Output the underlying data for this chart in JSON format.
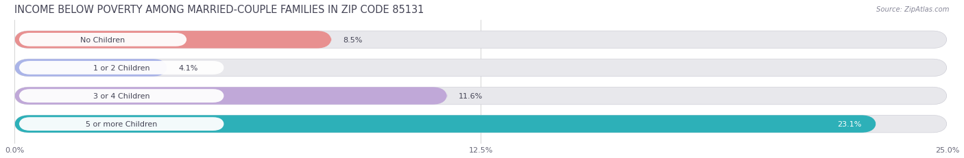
{
  "title": "INCOME BELOW POVERTY AMONG MARRIED-COUPLE FAMILIES IN ZIP CODE 85131",
  "source": "Source: ZipAtlas.com",
  "categories": [
    "No Children",
    "1 or 2 Children",
    "3 or 4 Children",
    "5 or more Children"
  ],
  "values": [
    8.5,
    4.1,
    11.6,
    23.1
  ],
  "bar_colors": [
    "#e89090",
    "#aab4e8",
    "#c0a8d8",
    "#2db0b8"
  ],
  "track_color": "#e8e8ec",
  "track_border": "#d0d0d8",
  "xlim": [
    0,
    25.0
  ],
  "xticks": [
    0.0,
    12.5,
    25.0
  ],
  "xtick_labels": [
    "0.0%",
    "12.5%",
    "25.0%"
  ],
  "title_fontsize": 10.5,
  "bar_height": 0.62,
  "background_color": "#ffffff",
  "text_color": "#444455",
  "label_fontsize": 8.0,
  "value_fontsize": 8.0,
  "value_color_inside": "#ffffff",
  "value_color_outside": "#444455",
  "inside_threshold": 20.0
}
